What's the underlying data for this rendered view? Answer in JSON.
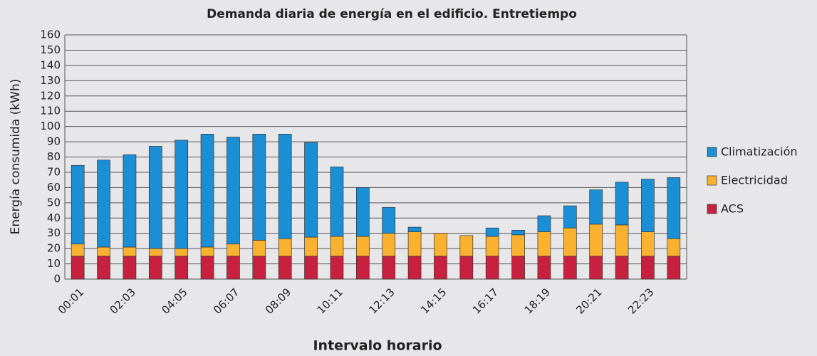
{
  "chart_data": {
    "type": "stacked_bar",
    "title": "Demanda diaria de energía en el edificio. Entretiempo",
    "x_label": "Intervalo horario",
    "y_label": "Energía consumida (kWh)",
    "categories": [
      "00:01",
      null,
      "02:03",
      null,
      "04:05",
      null,
      "06:07",
      null,
      "08:09",
      null,
      "10:11",
      null,
      "12:13",
      null,
      "14:15",
      null,
      "16:17",
      null,
      "18:19",
      null,
      "20:21",
      null,
      "22:23",
      null
    ],
    "series": [
      {
        "name": "ACS",
        "color": "#c8203f",
        "values": [
          15,
          15,
          15,
          15,
          15,
          15,
          15,
          15,
          15,
          15,
          15,
          15,
          15,
          15,
          15,
          15,
          15,
          15,
          15,
          15,
          15,
          15,
          15,
          15
        ]
      },
      {
        "name": "Electricidad",
        "color": "#fbb130",
        "values": [
          8,
          6,
          6,
          5,
          5,
          6,
          8,
          10.5,
          11.5,
          12.5,
          13,
          13,
          15,
          16,
          15,
          13.5,
          13,
          14,
          16,
          18.5,
          21,
          20.5,
          16,
          11.5
        ]
      },
      {
        "name": "Climatización",
        "color": "#1a8fd6",
        "values": [
          51.5,
          57,
          60.5,
          67,
          71,
          74,
          70,
          69.5,
          68.5,
          62,
          45.5,
          32,
          17,
          3,
          0,
          0,
          5.5,
          3,
          10.5,
          14.5,
          22.5,
          28,
          34.5,
          40
        ]
      }
    ],
    "ylim": [
      0,
      160
    ],
    "yticks": [
      0,
      10,
      20,
      30,
      40,
      50,
      60,
      70,
      80,
      90,
      100,
      110,
      120,
      130,
      140,
      150,
      160
    ],
    "grid": true,
    "legend": "right"
  }
}
